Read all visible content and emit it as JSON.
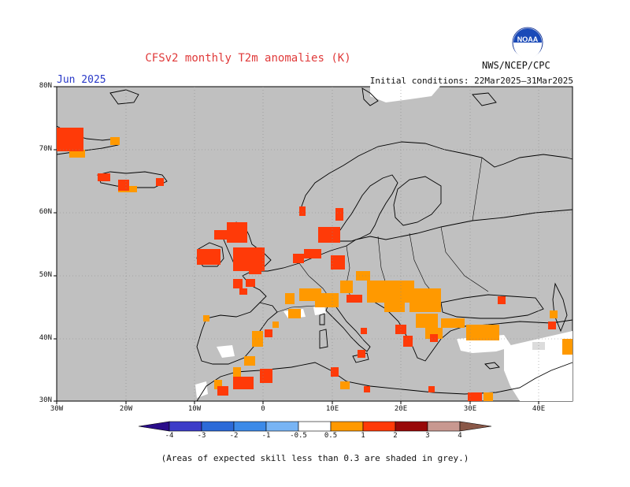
{
  "header": {
    "title": "CFSv2 monthly T2m anomalies (K)",
    "month": "Jun 2025",
    "initial_conditions": "Initial conditions: 22Mar2025–31Mar2025",
    "agency": "NWS/NCEP/CPC",
    "logo_text": "NOAA"
  },
  "map": {
    "lat_labels": [
      "80N",
      "70N",
      "60N",
      "50N",
      "40N",
      "30N"
    ],
    "lon_labels": [
      "30W",
      "20W",
      "10W",
      "0",
      "10E",
      "20E",
      "30E",
      "40E"
    ],
    "background_color": "#c0c0c0",
    "land_outline_color": "#000000"
  },
  "colorbar": {
    "labels": [
      "-4",
      "-3",
      "-2",
      "-1",
      "-0.5",
      "0.5",
      "1",
      "2",
      "3",
      "4"
    ],
    "colors": [
      "#2a0d8a",
      "#3c3cc8",
      "#2c6ad8",
      "#3c8ae8",
      "#78b4f4",
      "#ffffff",
      "#ff9900",
      "#ff3a08",
      "#e81408",
      "#980808",
      "#c89890",
      "#8a5848"
    ]
  },
  "footnote": "(Areas of expected skill less than 0.3 are shaded in grey.)"
}
